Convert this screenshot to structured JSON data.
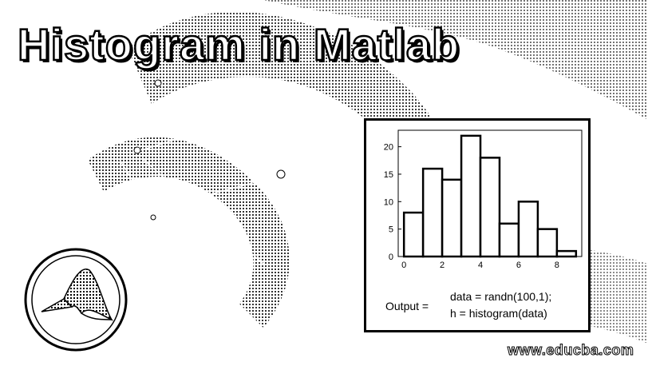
{
  "header": {
    "title": "Histogram in Matlab"
  },
  "figure": {
    "output_label": "Output =",
    "code_lines": [
      "data = randn(100,1);",
      "h = histogram(data)"
    ]
  },
  "watermark": "www.educba.com",
  "colors": {
    "bar_fill": "#ffffff",
    "bar_stroke": "#000000",
    "background": "#ffffff",
    "ink": "#000000"
  },
  "logo": {
    "icon": "matlab-membrane-icon"
  },
  "chart_data": {
    "type": "bar",
    "bin_edges": [
      0,
      1,
      2,
      3,
      4,
      5,
      6,
      7,
      8,
      9
    ],
    "values": [
      8,
      16,
      14,
      22,
      18,
      6,
      10,
      5,
      1
    ],
    "xlim": [
      -0.3,
      9.3
    ],
    "ylim": [
      0,
      23
    ],
    "xticks": [
      0,
      2,
      4,
      6,
      8
    ],
    "yticks": [
      0,
      5,
      10,
      15,
      20
    ],
    "title": "",
    "xlabel": "",
    "ylabel": "",
    "grid": false
  }
}
